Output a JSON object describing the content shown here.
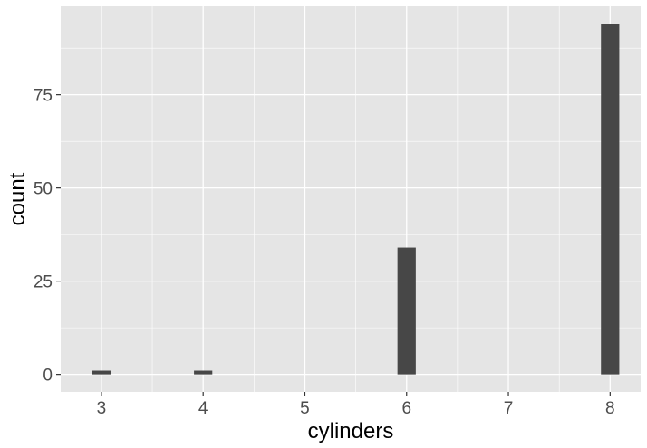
{
  "chart_data": {
    "type": "bar",
    "title": "",
    "xlabel": "cylinders",
    "ylabel": "count",
    "x": [
      3,
      4,
      6,
      8
    ],
    "values": [
      1,
      1,
      34,
      94
    ],
    "xlim": [
      2.6,
      8.3
    ],
    "ylim": [
      -4.7,
      98.7
    ],
    "x_ticks": [
      3,
      4,
      5,
      6,
      7,
      8
    ],
    "y_ticks": [
      0,
      25,
      50,
      75
    ],
    "grid": true,
    "colors": {
      "panel": "#e5e5e5",
      "grid": "#ffffff",
      "bar": "#474747",
      "tick_text": "#4d4d4d",
      "tick_mark": "#333333"
    }
  }
}
